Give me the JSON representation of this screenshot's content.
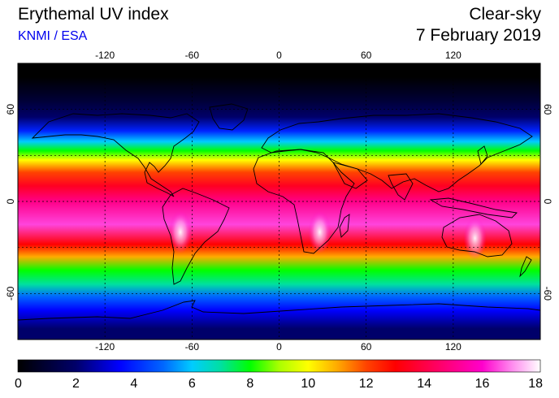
{
  "header": {
    "title": "Erythemal UV index",
    "source": "KNMI / ESA",
    "mode": "Clear-sky",
    "date": "7 February 2019"
  },
  "map": {
    "projection": "equirectangular",
    "lon_range": [
      -180,
      180
    ],
    "lat_range": [
      -90,
      90
    ],
    "gridlines": {
      "longitudes": [
        -120,
        -60,
        0,
        60,
        120
      ],
      "latitudes": [
        60,
        30,
        0,
        -30,
        -60
      ]
    },
    "lon_tick_labels": [
      "-120",
      "-60",
      "0",
      "60",
      "120"
    ],
    "lat_tick_labels": [
      "60",
      "0",
      "-60"
    ],
    "uv_bands": [
      {
        "lat_from": 90,
        "lat_to": 72,
        "uv": 0
      },
      {
        "lat_from": 72,
        "lat_to": 60,
        "uv": 1
      },
      {
        "lat_from": 60,
        "lat_to": 50,
        "uv": 2
      },
      {
        "lat_from": 50,
        "lat_to": 42,
        "uv": 4
      },
      {
        "lat_from": 42,
        "lat_to": 36,
        "uv": 6
      },
      {
        "lat_from": 36,
        "lat_to": 30,
        "uv": 8
      },
      {
        "lat_from": 30,
        "lat_to": 24,
        "uv": 10
      },
      {
        "lat_from": 24,
        "lat_to": 14,
        "uv": 12
      },
      {
        "lat_from": 14,
        "lat_to": 6,
        "uv": 13.5
      },
      {
        "lat_from": 6,
        "lat_to": -6,
        "uv": 15
      },
      {
        "lat_from": -6,
        "lat_to": -24,
        "uv": 16.5
      },
      {
        "lat_from": -24,
        "lat_to": -32,
        "uv": 13
      },
      {
        "lat_from": -32,
        "lat_to": -40,
        "uv": 11
      },
      {
        "lat_from": -40,
        "lat_to": -50,
        "uv": 8
      },
      {
        "lat_from": -50,
        "lat_to": -58,
        "uv": 7
      },
      {
        "lat_from": -58,
        "lat_to": -66,
        "uv": 5
      },
      {
        "lat_from": -66,
        "lat_to": -76,
        "uv": 3.5
      },
      {
        "lat_from": -76,
        "lat_to": -90,
        "uv": 2
      }
    ],
    "hotspots": [
      {
        "name": "andes",
        "lon": -68,
        "lat": -20,
        "uv": 18
      },
      {
        "name": "southern-africa",
        "lon": 28,
        "lat": -20,
        "uv": 17
      },
      {
        "name": "australia",
        "lon": 135,
        "lat": -24,
        "uv": 17
      }
    ]
  },
  "colorbar": {
    "min": 0,
    "max": 18,
    "tick_labels": [
      "0",
      "2",
      "4",
      "6",
      "8",
      "10",
      "12",
      "14",
      "16",
      "18"
    ],
    "stops": [
      {
        "value": 0,
        "color": "#000000"
      },
      {
        "value": 2,
        "color": "#00006a"
      },
      {
        "value": 3.5,
        "color": "#0000ff"
      },
      {
        "value": 5,
        "color": "#0066ff"
      },
      {
        "value": 6,
        "color": "#00ccff"
      },
      {
        "value": 7,
        "color": "#00e0a0"
      },
      {
        "value": 8,
        "color": "#00ff00"
      },
      {
        "value": 9,
        "color": "#aaff00"
      },
      {
        "value": 10,
        "color": "#ffff00"
      },
      {
        "value": 11,
        "color": "#ffaa00"
      },
      {
        "value": 12,
        "color": "#ff4400"
      },
      {
        "value": 13,
        "color": "#ff0000"
      },
      {
        "value": 14.5,
        "color": "#ff0066"
      },
      {
        "value": 16,
        "color": "#ff00cc"
      },
      {
        "value": 17,
        "color": "#ff88ee"
      },
      {
        "value": 18,
        "color": "#ffffff"
      }
    ]
  }
}
